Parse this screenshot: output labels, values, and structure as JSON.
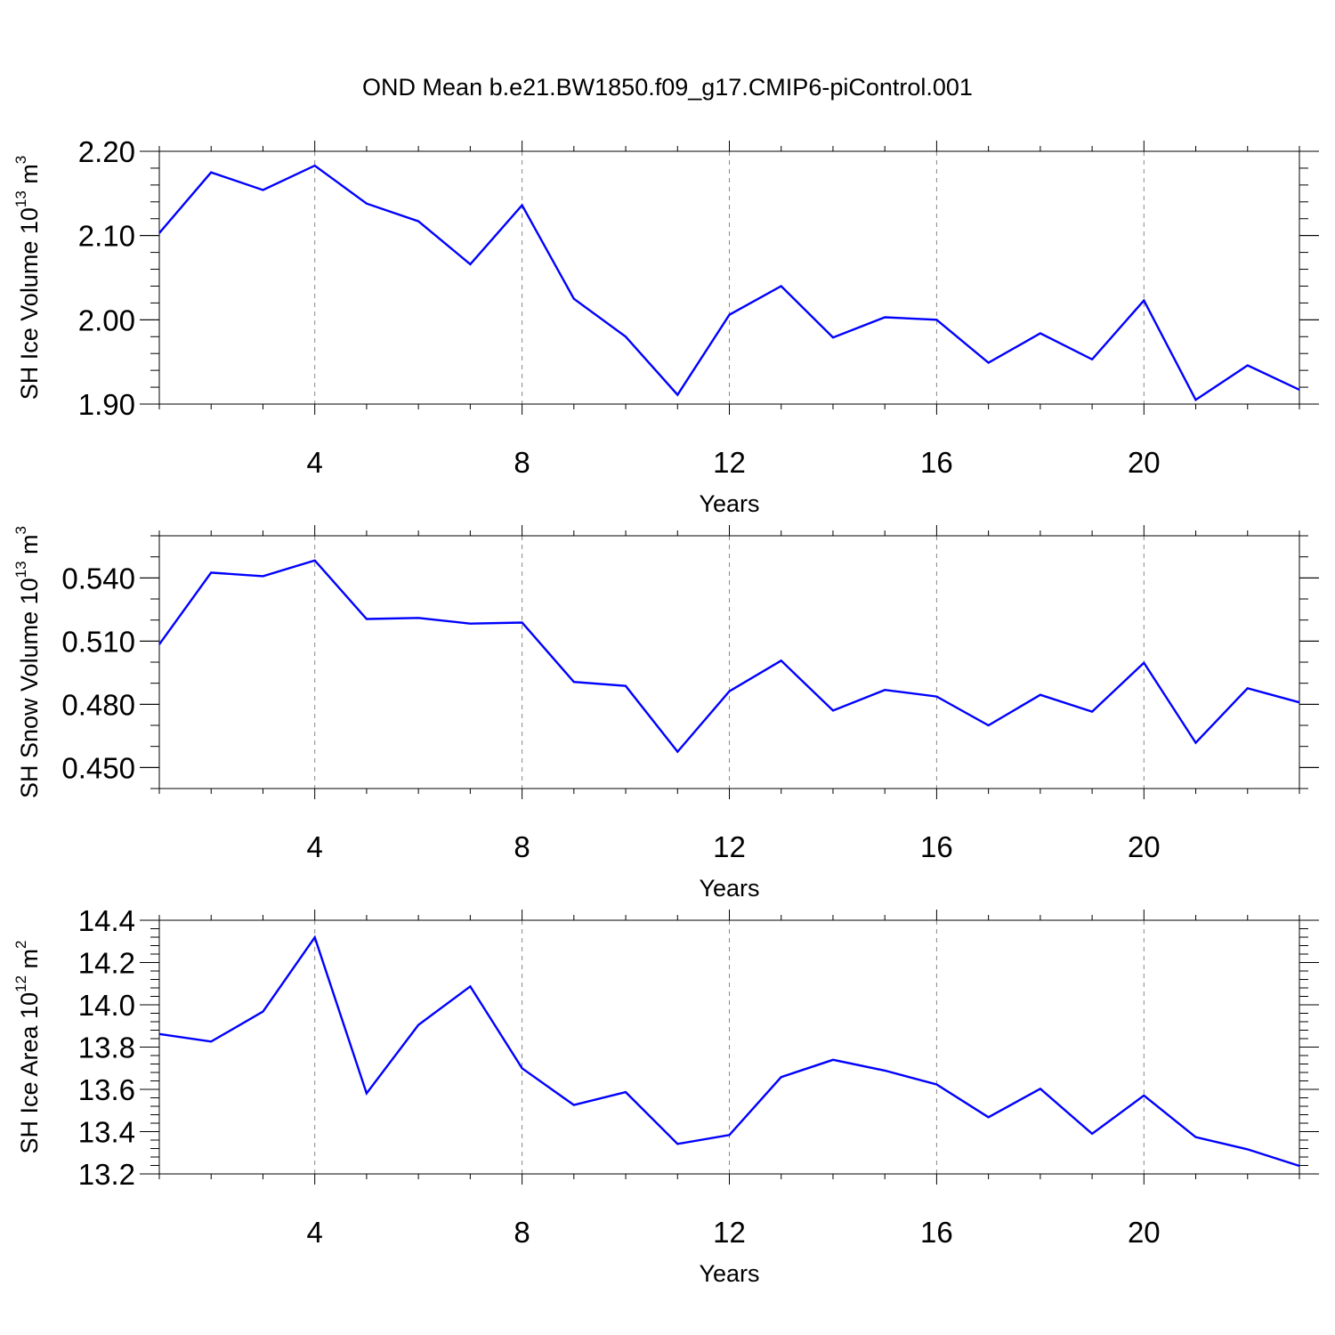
{
  "title": "OND Mean b.e21.BW1850.f09_g17.CMIP6-piControl.001",
  "chart_data": [
    {
      "type": "line",
      "x": [
        1,
        2,
        3,
        4,
        5,
        6,
        7,
        8,
        9,
        10,
        11,
        12,
        13,
        14,
        15,
        16,
        17,
        18,
        19,
        20,
        21,
        22,
        23
      ],
      "series": [
        {
          "values": [
            2.103,
            2.175,
            2.154,
            2.183,
            2.138,
            2.117,
            2.066,
            2.136,
            2.025,
            1.98,
            1.911,
            2.006,
            2.04,
            1.979,
            2.003,
            2.0,
            1.949,
            1.984,
            1.953,
            2.023,
            1.905,
            1.946,
            1.917
          ],
          "color": "#0000ff"
        }
      ],
      "xlim": [
        1,
        23
      ],
      "ylim": [
        1.9,
        2.2
      ],
      "xticks": [
        4,
        8,
        12,
        16,
        20
      ],
      "xtick_labels": [
        "4",
        "8",
        "12",
        "16",
        "20"
      ],
      "xminor": [
        1,
        2,
        3,
        5,
        6,
        7,
        9,
        10,
        11,
        13,
        14,
        15,
        17,
        18,
        19,
        21,
        22,
        23
      ],
      "yticks": [
        1.9,
        2.0,
        2.1,
        2.2
      ],
      "ytick_labels": [
        "1.90",
        "2.00",
        "2.10",
        "2.20"
      ],
      "yminor_step": 0.02,
      "xlabel": "Years",
      "ylabel": "SH Ice Volume 10",
      "ylabel_exp": "13",
      "ylabel_unit": " m",
      "ylabel_unit_exp": "3",
      "grid": "dashed vertical at major x ticks"
    },
    {
      "type": "line",
      "x": [
        1,
        2,
        3,
        4,
        5,
        6,
        7,
        8,
        9,
        10,
        11,
        12,
        13,
        14,
        15,
        16,
        17,
        18,
        19,
        20,
        21,
        22,
        23
      ],
      "series": [
        {
          "values": [
            0.5085,
            0.5425,
            0.5408,
            0.5483,
            0.5205,
            0.521,
            0.5183,
            0.5188,
            0.4906,
            0.4887,
            0.4575,
            0.4862,
            0.5007,
            0.477,
            0.4868,
            0.4837,
            0.47,
            0.4845,
            0.4765,
            0.4997,
            0.4617,
            0.4876,
            0.4809
          ],
          "color": "#0000ff"
        }
      ],
      "xlim": [
        1,
        23
      ],
      "ylim": [
        0.44,
        0.56
      ],
      "xticks": [
        4,
        8,
        12,
        16,
        20
      ],
      "xtick_labels": [
        "4",
        "8",
        "12",
        "16",
        "20"
      ],
      "xminor": [
        1,
        2,
        3,
        5,
        6,
        7,
        9,
        10,
        11,
        13,
        14,
        15,
        17,
        18,
        19,
        21,
        22,
        23
      ],
      "yticks": [
        0.45,
        0.48,
        0.51,
        0.54
      ],
      "ytick_labels": [
        "0.450",
        "0.480",
        "0.510",
        "0.540"
      ],
      "yminor_step": 0.01,
      "xlabel": "Years",
      "ylabel": "SH Snow Volume 10",
      "ylabel_exp": "13",
      "ylabel_unit": " m",
      "ylabel_unit_exp": "3",
      "grid": "dashed vertical at major x ticks"
    },
    {
      "type": "line",
      "x": [
        1,
        2,
        3,
        4,
        5,
        6,
        7,
        8,
        9,
        10,
        11,
        12,
        13,
        14,
        15,
        16,
        17,
        18,
        19,
        20,
        21,
        22,
        23
      ],
      "series": [
        {
          "values": [
            13.862,
            13.826,
            13.968,
            14.319,
            13.581,
            13.905,
            14.087,
            13.7,
            13.526,
            13.587,
            13.342,
            13.384,
            13.658,
            13.74,
            13.689,
            13.623,
            13.468,
            13.603,
            13.39,
            13.571,
            13.374,
            13.316,
            13.238
          ],
          "color": "#0000ff"
        }
      ],
      "xlim": [
        1,
        23
      ],
      "ylim": [
        13.2,
        14.4
      ],
      "xticks": [
        4,
        8,
        12,
        16,
        20
      ],
      "xtick_labels": [
        "4",
        "8",
        "12",
        "16",
        "20"
      ],
      "xminor": [
        1,
        2,
        3,
        5,
        6,
        7,
        9,
        10,
        11,
        13,
        14,
        15,
        17,
        18,
        19,
        21,
        22,
        23
      ],
      "yticks": [
        13.2,
        13.4,
        13.6,
        13.8,
        14.0,
        14.2,
        14.4
      ],
      "ytick_labels": [
        "13.2",
        "13.4",
        "13.6",
        "13.8",
        "14.0",
        "14.2",
        "14.4"
      ],
      "yminor_step": 0.04,
      "xlabel": "Years",
      "ylabel": "SH Ice Area 10",
      "ylabel_exp": "12",
      "ylabel_unit": " m",
      "ylabel_unit_exp": "2",
      "grid": "dashed vertical at major x ticks"
    }
  ]
}
